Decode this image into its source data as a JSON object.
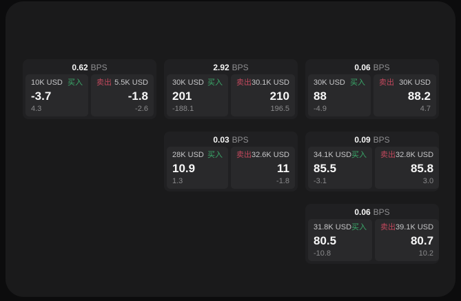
{
  "labels": {
    "buy": "买入",
    "sell": "卖出",
    "bps_unit": "BPS"
  },
  "colors": {
    "page_background": "#0c0c0d",
    "panel_background": "#1a1a1b",
    "card_background": "#202022",
    "subpanel_background": "#29292b",
    "buy_green": "#3aa96a",
    "sell_red": "#c2485c"
  },
  "cards": [
    {
      "bps": "0.62",
      "buy": {
        "amount": "10K USD",
        "value": "-3.7",
        "change": "4.3"
      },
      "sell": {
        "amount": "5.5K USD",
        "value": "-1.8",
        "change": "-2.6"
      }
    },
    {
      "bps": "2.92",
      "buy": {
        "amount": "30K USD",
        "value": "201",
        "change": "-188.1"
      },
      "sell": {
        "amount": "30.1K USD",
        "value": "210",
        "change": "196.5"
      }
    },
    {
      "bps": "0.06",
      "buy": {
        "amount": "30K USD",
        "value": "88",
        "change": "-4.9"
      },
      "sell": {
        "amount": "30K USD",
        "value": "88.2",
        "change": "4.7"
      }
    },
    {
      "bps": "0.03",
      "buy": {
        "amount": "28K USD",
        "value": "10.9",
        "change": "1.3"
      },
      "sell": {
        "amount": "32.6K USD",
        "value": "11",
        "change": "-1.8"
      }
    },
    {
      "bps": "0.09",
      "buy": {
        "amount": "34.1K USD",
        "value": "85.5",
        "change": "-3.1"
      },
      "sell": {
        "amount": "32.8K USD",
        "value": "85.8",
        "change": "3.0"
      }
    },
    {
      "bps": "0.06",
      "buy": {
        "amount": "31.8K USD",
        "value": "80.5",
        "change": "-10.8"
      },
      "sell": {
        "amount": "39.1K USD",
        "value": "80.7",
        "change": "10.2"
      }
    }
  ]
}
